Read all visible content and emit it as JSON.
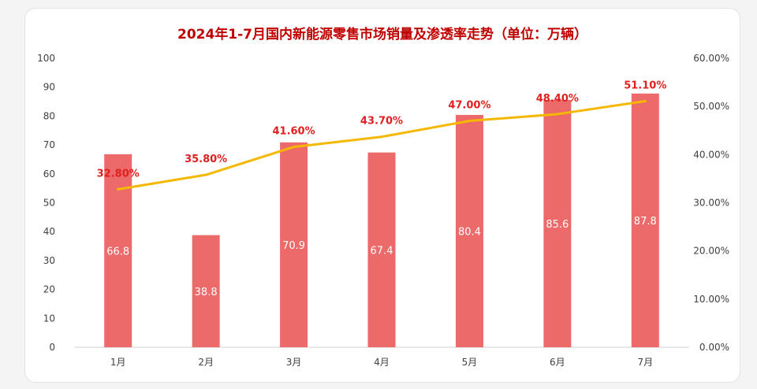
{
  "chart_data": {
    "type": "bar",
    "title": "2024年1-7月国内新能源零售市场销量及渗透率走势（单位：万辆）",
    "categories": [
      "1月",
      "2月",
      "3月",
      "4月",
      "5月",
      "6月",
      "7月"
    ],
    "series": [
      {
        "type": "bar",
        "axis": "left",
        "values": [
          66.8,
          38.8,
          70.9,
          67.4,
          80.4,
          85.6,
          87.8
        ],
        "labels": [
          "66.8",
          "38.8",
          "70.9",
          "67.4",
          "80.4",
          "85.6",
          "87.8"
        ],
        "color": "#ec6a6a"
      },
      {
        "type": "line",
        "axis": "right",
        "values": [
          32.8,
          35.8,
          41.6,
          43.7,
          47.0,
          48.4,
          51.1
        ],
        "labels": [
          "32.80%",
          "35.80%",
          "41.60%",
          "43.70%",
          "47.00%",
          "48.40%",
          "51.10%"
        ],
        "color": "#f5b800"
      }
    ],
    "y_left": {
      "min": 0,
      "max": 100,
      "ticks": [
        "0",
        "10",
        "20",
        "30",
        "40",
        "50",
        "60",
        "70",
        "80",
        "90",
        "100"
      ]
    },
    "y_right": {
      "min": 0,
      "max": 60,
      "ticks": [
        "0.00%",
        "10.00%",
        "20.00%",
        "30.00%",
        "40.00%",
        "50.00%",
        "60.00%"
      ]
    },
    "grid": false,
    "legend": "none"
  }
}
